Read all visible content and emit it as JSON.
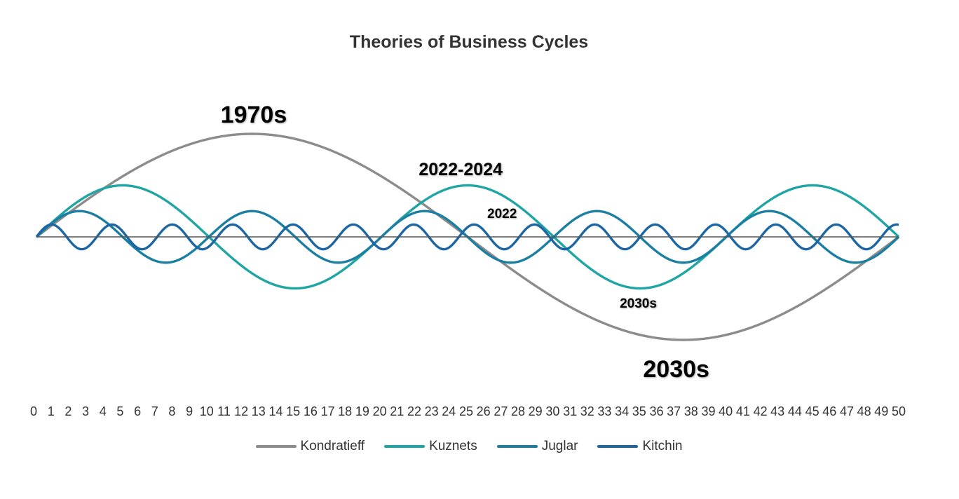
{
  "chart_data": {
    "type": "line",
    "title": "Theories of Business Cycles",
    "x": [
      0,
      1,
      2,
      3,
      4,
      5,
      6,
      7,
      8,
      9,
      10,
      11,
      12,
      13,
      14,
      15,
      16,
      17,
      18,
      19,
      20,
      21,
      22,
      23,
      24,
      25,
      26,
      27,
      28,
      29,
      30,
      31,
      32,
      33,
      34,
      35,
      36,
      37,
      38,
      39,
      40,
      41,
      42,
      43,
      44,
      45,
      46,
      47,
      48,
      49,
      50
    ],
    "x_tick_labels": [
      "0",
      "1",
      "2",
      "3",
      "4",
      "5",
      "6",
      "7",
      "8",
      "9",
      "10",
      "11",
      "12",
      "13",
      "14",
      "15",
      "16",
      "17",
      "18",
      "19",
      "20",
      "21",
      "22",
      "23",
      "24",
      "25",
      "26",
      "27",
      "28",
      "29",
      "30",
      "31",
      "32",
      "33",
      "34",
      "35",
      "36",
      "37",
      "38",
      "39",
      "40",
      "41",
      "42",
      "43",
      "44",
      "45",
      "46",
      "47",
      "48",
      "49",
      "50"
    ],
    "xlabel": "",
    "ylabel": "",
    "xlim": [
      0,
      50
    ],
    "ylim": [
      -1,
      1
    ],
    "grid": false,
    "legend_position": "bottom",
    "series": [
      {
        "name": "Kondratieff",
        "color": "#8c8c8c",
        "amplitude": 1.0,
        "period": 50
      },
      {
        "name": "Kuznets",
        "color": "#1fa5a3",
        "amplitude": 0.5,
        "period": 20
      },
      {
        "name": "Juglar",
        "color": "#1b7fa1",
        "amplitude": 0.25,
        "period": 10
      },
      {
        "name": "Kitchin",
        "color": "#1c66a3",
        "amplitude": 0.12,
        "period": 3.5
      }
    ],
    "annotations": [
      {
        "text": "1970s",
        "x": 12.6,
        "y": 1.2,
        "size": "large"
      },
      {
        "text": "2022-2024",
        "x": 24.6,
        "y": 0.66,
        "size": "medium"
      },
      {
        "text": "2022",
        "x": 27.0,
        "y": 0.23,
        "size": "small"
      },
      {
        "text": "2030s",
        "x": 34.9,
        "y": -0.64,
        "size": "small"
      },
      {
        "text": "2030s",
        "x": 37.1,
        "y": -1.27,
        "size": "large"
      }
    ]
  },
  "colors": {
    "axis_line": "#555555",
    "tick_text": "#333333"
  }
}
